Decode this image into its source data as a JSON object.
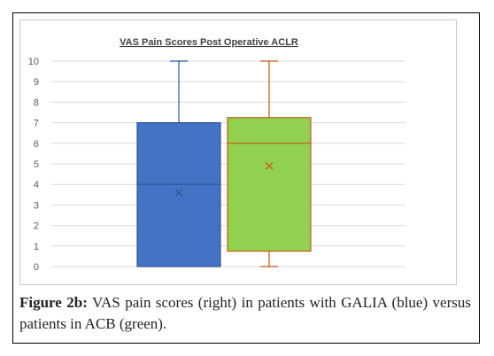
{
  "chart_data": {
    "type": "boxplot",
    "title": "VAS Pain Scores Post Operative ACLR",
    "xlabel": "",
    "ylabel": "",
    "ylim": [
      0,
      10
    ],
    "yticks": [
      0,
      1,
      2,
      3,
      4,
      5,
      6,
      7,
      8,
      9,
      10
    ],
    "grid": true,
    "legend": "none",
    "series": [
      {
        "group": "GALIA",
        "color": "#4472c4",
        "edge": "#2f5597",
        "min": 0,
        "q1": 0,
        "median": 4,
        "q3": 7,
        "max": 10,
        "mean": 3.6
      },
      {
        "group": "ACB",
        "color": "#92d050",
        "edge": "#c55a11",
        "min": 0,
        "q1": 0.75,
        "median": 6,
        "q3": 7.25,
        "max": 10,
        "mean": 4.9
      }
    ]
  },
  "caption": {
    "lead": "Figure 2b:",
    "text": "VAS pain scores (right) in patients with GALIA (blue) versus patients in ACB (green)."
  }
}
